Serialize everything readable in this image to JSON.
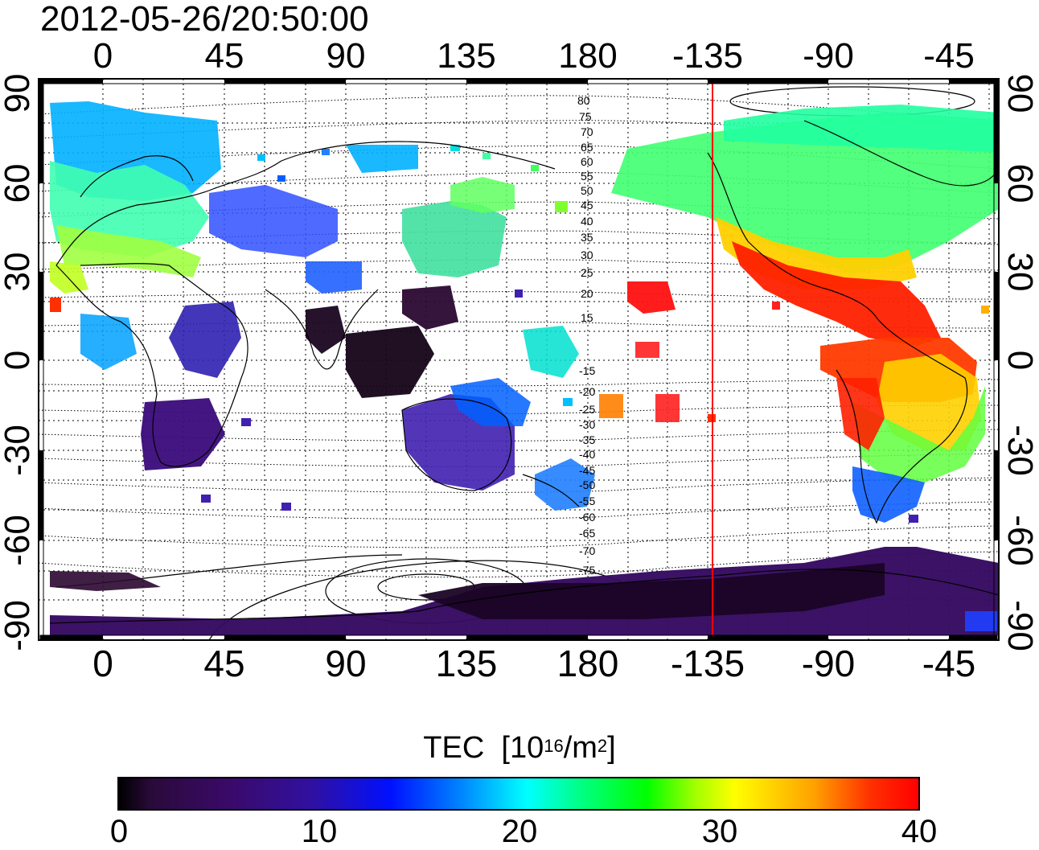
{
  "header": {
    "timestamp": "2012-05-26/20:50:00"
  },
  "axes": {
    "top_lon_ticks": [
      "0",
      "45",
      "90",
      "135",
      "180",
      "-135",
      "-90",
      "-45"
    ],
    "bottom_lon_ticks": [
      "0",
      "45",
      "90",
      "135",
      "180",
      "-135",
      "-90",
      "-45"
    ],
    "left_lat_ticks": [
      "90",
      "60",
      "30",
      "0",
      "-30",
      "-60",
      "-90"
    ],
    "right_lat_ticks": [
      "90",
      "60",
      "30",
      "0",
      "-30",
      "-60",
      "-90"
    ]
  },
  "contour_labels": [
    "80",
    "75",
    "70",
    "65",
    "60",
    "55",
    "50",
    "45",
    "40",
    "35",
    "30",
    "25",
    "20",
    "15",
    "-15",
    "-20",
    "-25",
    "-30",
    "-35",
    "-40",
    "-45",
    "-50",
    "-55",
    "-60",
    "-65",
    "-70",
    "-75"
  ],
  "colorbar": {
    "title": "TEC",
    "unit_prefix": "[10",
    "unit_exp1": "16",
    "unit_mid": "/m",
    "unit_exp2": "2",
    "unit_suffix": "]",
    "ticks": [
      "0",
      "10",
      "20",
      "30",
      "40"
    ],
    "min": 0,
    "max": 40
  },
  "colors": {
    "terminator": "#ff0000",
    "frame": "#000000"
  }
}
